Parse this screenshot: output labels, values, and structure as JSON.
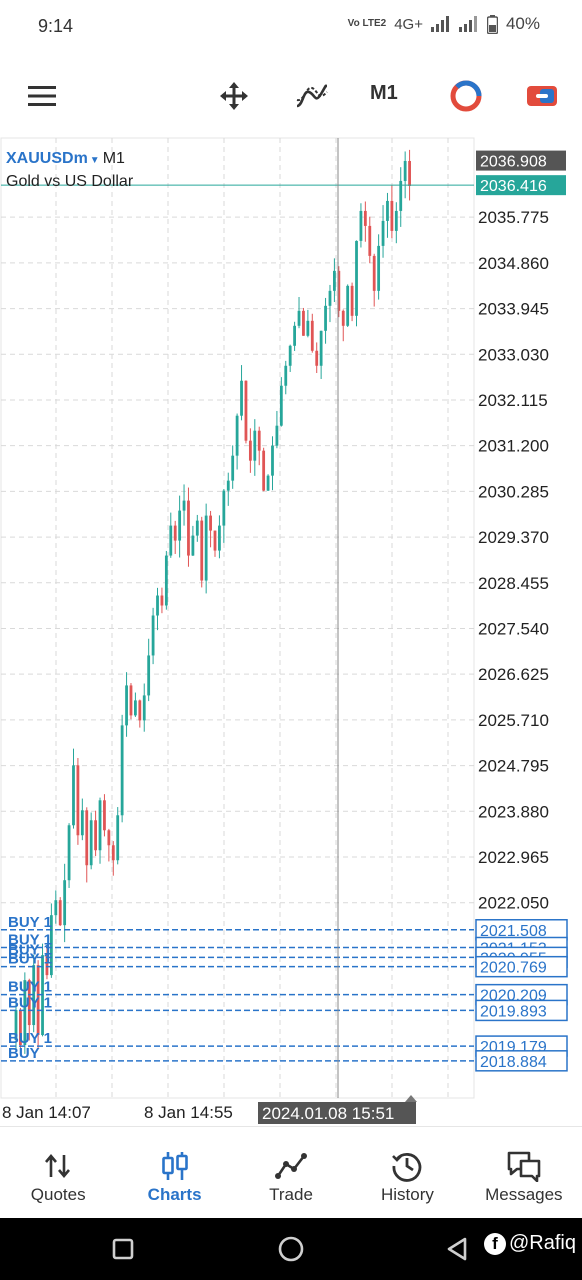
{
  "status_bar": {
    "time": "9:14",
    "network": "Vo LTE2",
    "signal": "4G+",
    "battery": "40%"
  },
  "toolbar": {
    "menu_icon": "hamburger-icon",
    "crosshair_icon": "crosshair-move-icon",
    "indicators_icon": "indicators-icon",
    "timeframe": "M1",
    "trade_icon": "one-click-trade-icon",
    "toggle_icon": "chart-settings-icon"
  },
  "chart": {
    "symbol": "XAUUSDm",
    "timeframe": "M1",
    "description": "Gold vs US Dollar",
    "colors": {
      "bull": "#26a69a",
      "bear": "#e05555",
      "grid": "#d9d9d9",
      "orders": "#2a74c9",
      "bid_tag": "#26a69a",
      "ask_tag": "#555555"
    }
  },
  "chart_data": {
    "type": "candlestick",
    "symbol": "XAUUSDm",
    "timeframe": "M1",
    "ylim": [
      2018.5,
      2037.2
    ],
    "y_ticks": [
      "2035.775",
      "2034.860",
      "2033.945",
      "2033.030",
      "2032.115",
      "2031.200",
      "2030.285",
      "2029.370",
      "2028.455",
      "2027.540",
      "2026.625",
      "2025.710",
      "2024.795",
      "2023.880",
      "2022.965",
      "2022.050"
    ],
    "x_ticks": [
      "8 Jan 14:07",
      "8 Jan 14:55"
    ],
    "crosshair_time": "2024.01.08 15:51",
    "ask_price": "2036.908",
    "bid_price": "2036.416",
    "order_levels": [
      "2021.508",
      "2021.153",
      "2020.955",
      "2020.769",
      "2020.209",
      "2019.893",
      "2019.179",
      "2018.884"
    ],
    "order_labels": [
      "BUY 1",
      "BUY 1",
      "BUY 1",
      "BUY 1",
      "BUY 1",
      "BUY 1",
      "BUY 1",
      "BUY"
    ],
    "ohlc_path": [
      2019.3,
      2019.9,
      2019.2,
      2020.5,
      2019.6,
      2020.8,
      2019.4,
      2021.0,
      2020.6,
      2021.8,
      2022.1,
      2021.6,
      2022.5,
      2023.6,
      2024.8,
      2023.4,
      2023.9,
      2022.8,
      2023.7,
      2023.1,
      2024.1,
      2023.5,
      2023.2,
      2022.9,
      2023.8,
      2025.6,
      2026.4,
      2025.8,
      2026.1,
      2025.7,
      2026.2,
      2027.0,
      2027.8,
      2028.2,
      2028.0,
      2029.0,
      2029.6,
      2029.3,
      2029.9,
      2030.1,
      2029.0,
      2029.4,
      2029.7,
      2028.5,
      2029.8,
      2029.5,
      2029.1,
      2029.6,
      2030.3,
      2030.5,
      2031.0,
      2031.8,
      2032.5,
      2031.3,
      2030.9,
      2031.5,
      2031.1,
      2030.3,
      2030.6,
      2031.2,
      2031.6,
      2032.4,
      2032.8,
      2033.2,
      2033.6,
      2033.9,
      2033.4,
      2033.7,
      2033.1,
      2032.8,
      2033.5,
      2034.0,
      2034.3,
      2034.7,
      2033.9,
      2033.6,
      2034.4,
      2033.8,
      2035.3,
      2035.9,
      2035.6,
      2035.0,
      2034.3,
      2035.2,
      2035.7,
      2036.1,
      2035.5,
      2035.9,
      2036.5,
      2036.9,
      2036.4
    ]
  },
  "bottom_nav": [
    {
      "label": "Quotes",
      "icon": "sort-arrows-icon",
      "active": false
    },
    {
      "label": "Charts",
      "icon": "candles-icon",
      "active": true
    },
    {
      "label": "Trade",
      "icon": "trade-line-icon",
      "active": false
    },
    {
      "label": "History",
      "icon": "history-clock-icon",
      "active": false
    },
    {
      "label": "Messages",
      "icon": "messages-icon",
      "active": false
    }
  ],
  "system_nav": {
    "recent": "recent-apps-icon",
    "home": "home-icon",
    "back": "back-icon",
    "watermark": "@Rafiq"
  }
}
